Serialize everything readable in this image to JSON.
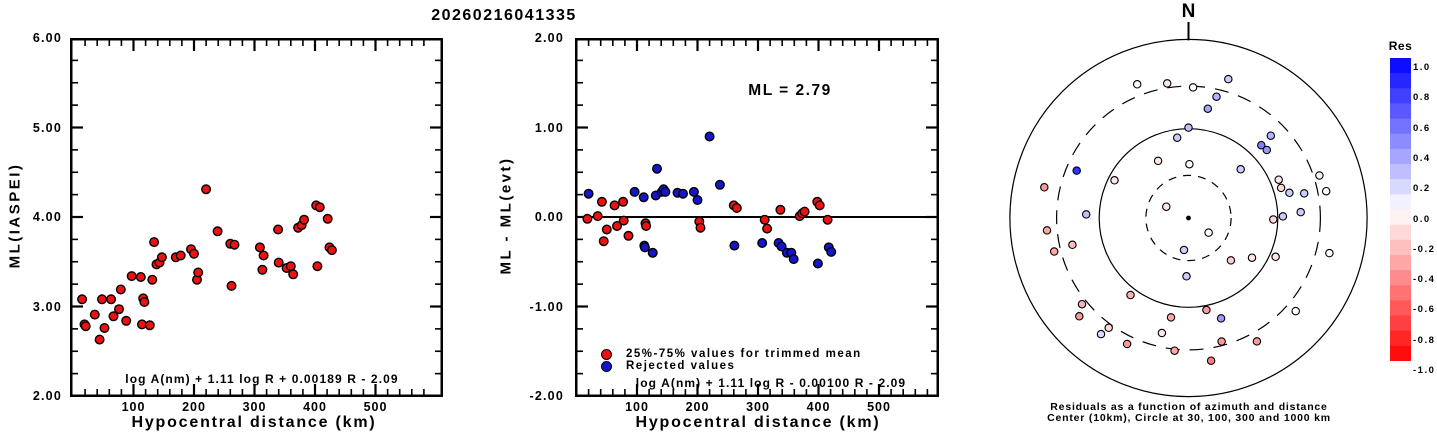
{
  "title": "20260216041335",
  "left_panel": {
    "ylabel": "ML(IASPEI)",
    "xlabel": "Hypocentral distance (km)",
    "formula": "log A(nm) + 1.11 log R + 0.00189 R - 2.09",
    "ytick_labels": [
      "6.00",
      "5.00",
      "4.00",
      "3.00",
      "2.00"
    ],
    "xtick_labels": [
      "100",
      "200",
      "300",
      "400",
      "500"
    ]
  },
  "middle_panel": {
    "ylabel": "ML - ML(evt)",
    "xlabel": "Hypocentral distance (km)",
    "ml_annotation": "ML = 2.79",
    "formula": "log A(nm) + 1.11 log R - 0.00100 R - 2.09",
    "legend": [
      {
        "label": "25%-75% values for trimmed mean",
        "color": "#ee1111"
      },
      {
        "label": "Rejected values",
        "color": "#1515cc"
      }
    ],
    "ytick_labels": [
      "2.00",
      "1.00",
      "0.00",
      "-1.00",
      "-2.00"
    ],
    "xtick_labels": [
      "100",
      "200",
      "300",
      "400",
      "500"
    ]
  },
  "polar_panel": {
    "north_label": "N",
    "caption_line1": "Residuals as a function of azimuth and distance",
    "caption_line2": "Center (10km), Circle at 30, 100, 300 and 1000 km"
  },
  "colorbar": {
    "title": "Res",
    "tick_labels": [
      "1.0",
      "0.8",
      "0.6",
      "0.4",
      "0.2",
      "0.0",
      "-0.2",
      "-0.4",
      "-0.6",
      "-0.8",
      "-1.0"
    ],
    "max_color": "#0000ee",
    "zero_color": "#ffffff",
    "min_color": "#ff0000"
  },
  "chart_data": [
    {
      "type": "scatter",
      "name": "ml_iaspei_vs_hypocentral_distance",
      "title": "20260216041335",
      "xlabel": "Hypocentral distance (km)",
      "ylabel": "ML(IASPEI)",
      "xlim": [
        0,
        610
      ],
      "ylim": [
        2.0,
        6.0
      ],
      "xticks": [
        100,
        200,
        300,
        400,
        500
      ],
      "yticks": [
        2.0,
        3.0,
        4.0,
        5.0,
        6.0
      ],
      "annotation": "log A(nm) + 1.11 log R + 0.00189 R - 2.09",
      "marker_color": "#ee1111",
      "point_format": "[distance_km, ML]",
      "points": [
        [
          15,
          3.08
        ],
        [
          19,
          2.8
        ],
        [
          21,
          2.78
        ],
        [
          36,
          2.91
        ],
        [
          44,
          2.63
        ],
        [
          48,
          3.08
        ],
        [
          52,
          2.76
        ],
        [
          63,
          3.08
        ],
        [
          67,
          2.89
        ],
        [
          76,
          2.97
        ],
        [
          79,
          3.19
        ],
        [
          88,
          2.84
        ],
        [
          97,
          3.34
        ],
        [
          112,
          3.33
        ],
        [
          114,
          2.8
        ],
        [
          116,
          3.09
        ],
        [
          118,
          3.05
        ],
        [
          127,
          2.79
        ],
        [
          131,
          3.3
        ],
        [
          134,
          3.72
        ],
        [
          138,
          3.47
        ],
        [
          143,
          3.49
        ],
        [
          147,
          3.55
        ],
        [
          170,
          3.55
        ],
        [
          178,
          3.57
        ],
        [
          195,
          3.64
        ],
        [
          200,
          3.59
        ],
        [
          205,
          3.3
        ],
        [
          207,
          3.38
        ],
        [
          220,
          4.31
        ],
        [
          239,
          3.84
        ],
        [
          260,
          3.7
        ],
        [
          262,
          3.23
        ],
        [
          267,
          3.69
        ],
        [
          309,
          3.66
        ],
        [
          313,
          3.41
        ],
        [
          315,
          3.57
        ],
        [
          339,
          3.86
        ],
        [
          340,
          3.49
        ],
        [
          353,
          3.43
        ],
        [
          360,
          3.45
        ],
        [
          364,
          3.36
        ],
        [
          372,
          3.88
        ],
        [
          378,
          3.91
        ],
        [
          382,
          3.97
        ],
        [
          402,
          4.13
        ],
        [
          404,
          3.45
        ],
        [
          408,
          4.11
        ],
        [
          421,
          3.98
        ],
        [
          424,
          3.66
        ],
        [
          428,
          3.63
        ]
      ]
    },
    {
      "type": "scatter",
      "name": "ml_residual_vs_hypocentral_distance",
      "xlabel": "Hypocentral distance (km)",
      "ylabel": "ML - ML(evt)",
      "xlim": [
        0,
        600
      ],
      "ylim": [
        -2.0,
        2.0
      ],
      "xticks": [
        100,
        200,
        300,
        400,
        500
      ],
      "yticks": [
        -2.0,
        -1.0,
        0.0,
        1.0,
        2.0
      ],
      "hline_y": 0.0,
      "annotation": "ML = 2.79",
      "formula": "log A(nm) + 1.11 log R - 0.00100 R - 2.09",
      "point_format": "[distance_km, residual]",
      "series": [
        {
          "name": "25%-75% values for trimmed mean",
          "color": "#ee1111",
          "points": [
            [
              18,
              -0.02
            ],
            [
              35,
              0.01
            ],
            [
              42,
              0.17
            ],
            [
              45,
              -0.27
            ],
            [
              50,
              -0.14
            ],
            [
              63,
              0.13
            ],
            [
              67,
              -0.1
            ],
            [
              77,
              0.17
            ],
            [
              78,
              -0.04
            ],
            [
              86,
              -0.21
            ],
            [
              114,
              -0.07
            ],
            [
              115,
              -0.1
            ],
            [
              203,
              -0.05
            ],
            [
              205,
              -0.12
            ],
            [
              260,
              0.13
            ],
            [
              265,
              0.1
            ],
            [
              311,
              -0.03
            ],
            [
              315,
              -0.13
            ],
            [
              337,
              0.08
            ],
            [
              369,
              0.01
            ],
            [
              373,
              0.04
            ],
            [
              377,
              0.06
            ],
            [
              398,
              0.17
            ],
            [
              402,
              0.13
            ],
            [
              415,
              -0.03
            ]
          ]
        },
        {
          "name": "Rejected values",
          "color": "#1515cc",
          "points": [
            [
              20,
              0.26
            ],
            [
              96,
              0.28
            ],
            [
              111,
              0.22
            ],
            [
              112,
              -0.32
            ],
            [
              113,
              -0.34
            ],
            [
              126,
              -0.4
            ],
            [
              131,
              0.24
            ],
            [
              133,
              0.54
            ],
            [
              141,
              0.28
            ],
            [
              144,
              0.31
            ],
            [
              147,
              0.28
            ],
            [
              167,
              0.27
            ],
            [
              176,
              0.26
            ],
            [
              194,
              0.28
            ],
            [
              200,
              0.19
            ],
            [
              220,
              0.9
            ],
            [
              237,
              0.36
            ],
            [
              261,
              -0.32
            ],
            [
              307,
              -0.29
            ],
            [
              334,
              -0.29
            ],
            [
              339,
              -0.33
            ],
            [
              348,
              -0.4
            ],
            [
              355,
              -0.4
            ],
            [
              359,
              -0.47
            ],
            [
              399,
              -0.52
            ],
            [
              417,
              -0.34
            ],
            [
              421,
              -0.39
            ]
          ]
        }
      ]
    },
    {
      "type": "scatter",
      "name": "residuals_by_azimuth_and_distance",
      "projection": "polar",
      "center_km": 10,
      "ring_circles_km": [
        30,
        100,
        300,
        1000
      ],
      "ring_styles": [
        "dashed",
        "solid",
        "dashed",
        "solid"
      ],
      "colorbar_label": "Res",
      "colorbar_range": [
        -1.0,
        1.0
      ],
      "point_format": "[azimuth_deg, distance_km, residual]",
      "points": [
        [
          339,
          401,
          0.0
        ],
        [
          351,
          336,
          -0.1
        ],
        [
          2,
          291,
          0.0
        ],
        [
          16,
          415,
          0.2
        ],
        [
          13,
          248,
          0.3
        ],
        [
          10,
          175,
          0.35
        ],
        [
          0,
          103,
          0.25
        ],
        [
          352,
          81,
          0.2
        ],
        [
          45,
          201,
          0.3
        ],
        [
          45,
          142,
          0.5
        ],
        [
          49,
          145,
          0.4
        ],
        [
          332,
          53,
          -0.1
        ],
        [
          1,
          40,
          0.0
        ],
        [
          47,
          63,
          0.2
        ],
        [
          293,
          229,
          0.8
        ],
        [
          72,
          348,
          0.05
        ],
        [
          67,
          125,
          -0.1
        ],
        [
          72,
          123,
          -0.15
        ],
        [
          282,
          448,
          -0.4
        ],
        [
          79,
          372,
          0.0
        ],
        [
          297,
          85,
          -0.1
        ],
        [
          76,
          146,
          0.2
        ],
        [
          78,
          211,
          0.2
        ],
        [
          297,
          19,
          -0.1
        ],
        [
          87,
          181,
          0.2
        ],
        [
          91,
          89,
          -0.15
        ],
        [
          89,
          114,
          0.2
        ],
        [
          272,
          140,
          0.25
        ],
        [
          265,
          390,
          -0.35
        ],
        [
          126,
          19,
          0.0
        ],
        [
          257,
          216,
          -0.25
        ],
        [
          256,
          355,
          -0.35
        ],
        [
          188,
          23,
          0.2
        ],
        [
          104,
          423,
          0.0
        ],
        [
          135,
          47,
          -0.2
        ],
        [
          122,
          69,
          -0.1
        ],
        [
          114,
          117,
          -0.1
        ],
        [
          182,
          45,
          0.2
        ],
        [
          217,
          120,
          -0.3
        ],
        [
          231,
          342,
          -0.3
        ],
        [
          228,
          442,
          -0.4
        ],
        [
          131,
          389,
          0.0
        ],
        [
          169,
          112,
          -0.4
        ],
        [
          162,
          152,
          0.4
        ],
        [
          190,
          135,
          -0.35
        ],
        [
          216,
          331,
          -0.15
        ],
        [
          217,
          424,
          0.15
        ],
        [
          193,
          210,
          -0.1
        ],
        [
          206,
          371,
          -0.4
        ],
        [
          165,
          270,
          -0.4
        ],
        [
          151,
          380,
          -0.4
        ],
        [
          186,
          312,
          -0.35
        ],
        [
          171,
          415,
          -0.5
        ]
      ]
    }
  ]
}
